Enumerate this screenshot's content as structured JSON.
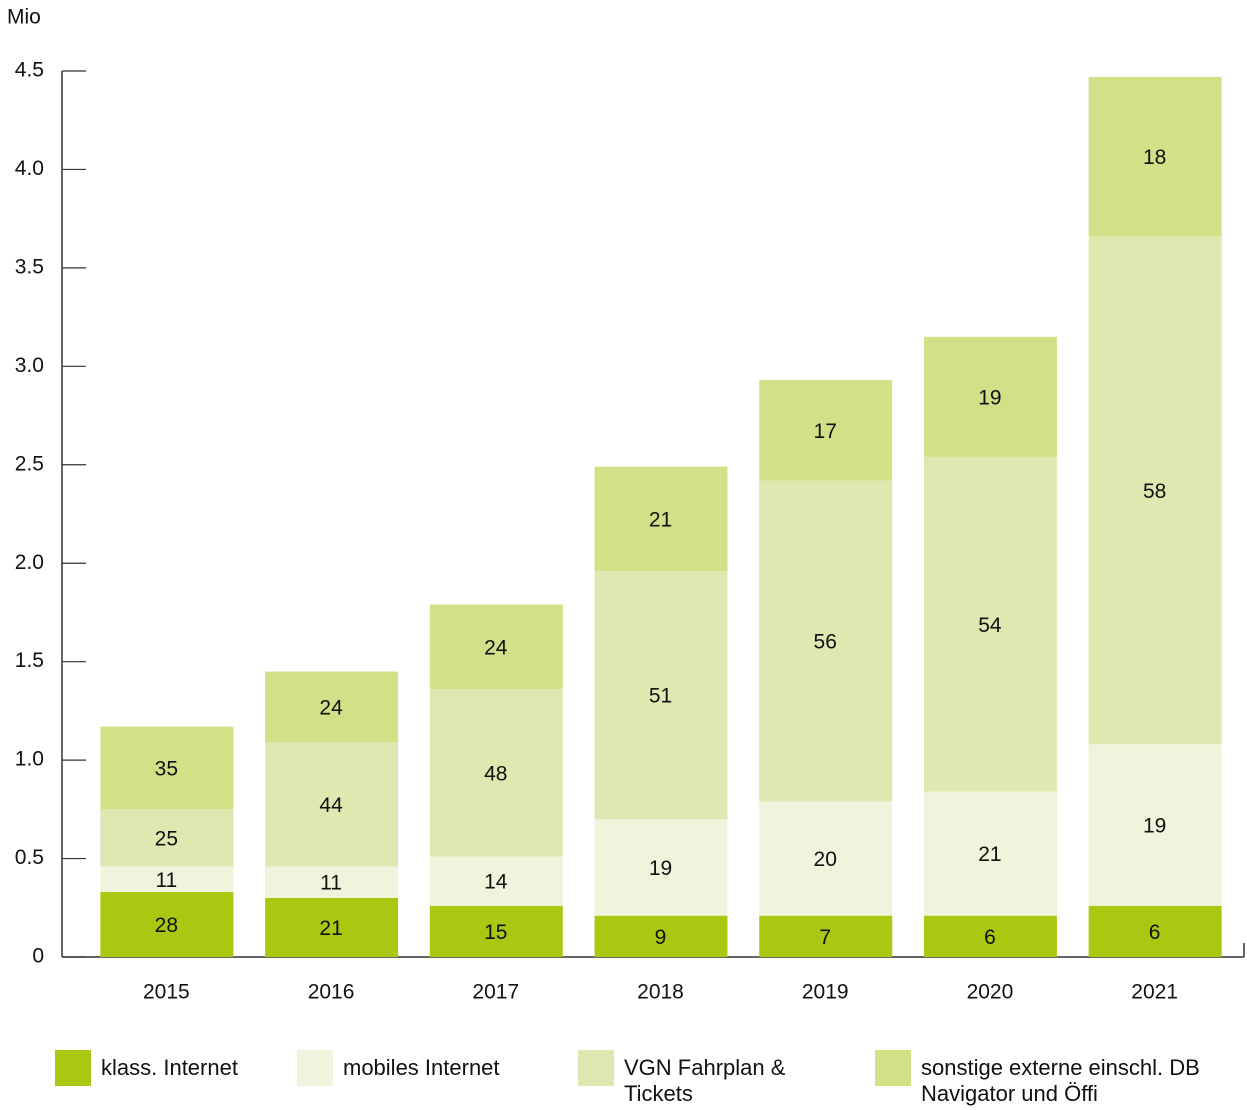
{
  "chart_data": {
    "type": "stacked_bar",
    "y_unit_label": "Mio",
    "categories": [
      "2015",
      "2016",
      "2017",
      "2018",
      "2019",
      "2020",
      "2021"
    ],
    "series": [
      {
        "name": "klass. Internet",
        "color": "#aac812",
        "values": [
          0.33,
          0.3,
          0.26,
          0.21,
          0.21,
          0.21,
          0.26
        ],
        "shares": [
          28,
          21,
          15,
          9,
          7,
          6,
          6
        ]
      },
      {
        "name": "mobiles Internet",
        "color": "#eff4dc",
        "values": [
          0.13,
          0.16,
          0.25,
          0.49,
          0.58,
          0.63,
          0.82
        ],
        "shares": [
          11,
          11,
          14,
          19,
          20,
          21,
          19
        ]
      },
      {
        "name": "VGN Fahrplan & Tickets",
        "color": "#e0e8b1",
        "values": [
          0.29,
          0.63,
          0.85,
          1.26,
          1.63,
          1.7,
          2.58
        ],
        "shares": [
          25,
          44,
          48,
          51,
          56,
          54,
          58
        ]
      },
      {
        "name": "sonstige externe einschl. DB Navigator und Öffi",
        "color": "#d3e088",
        "values": [
          0.42,
          0.36,
          0.43,
          0.53,
          0.51,
          0.61,
          0.81
        ],
        "shares": [
          35,
          24,
          24,
          21,
          17,
          19,
          18
        ]
      }
    ],
    "ylim": [
      0,
      4.5
    ],
    "yticks": [
      0,
      {
        "value": 0.5,
        "label": "0.5"
      },
      {
        "value": 1,
        "label": "1.0"
      },
      {
        "value": 1.5,
        "label": "1.5"
      },
      {
        "value": 2,
        "label": "2.0"
      },
      {
        "value": 2.5,
        "label": "2.5"
      },
      {
        "value": 3,
        "label": "3.0"
      },
      {
        "value": 3.5,
        "label": "3.5"
      },
      {
        "value": 4,
        "label": "4.0"
      },
      4.5
    ]
  }
}
